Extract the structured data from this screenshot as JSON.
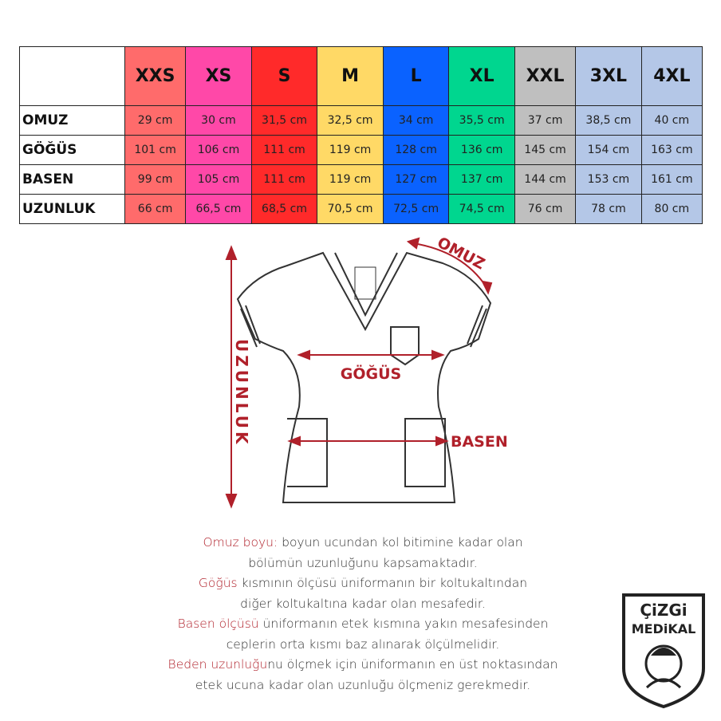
{
  "table": {
    "sizes": [
      "XXS",
      "XS",
      "S",
      "M",
      "L",
      "XL",
      "XXL",
      "3XL",
      "4XL"
    ],
    "size_colors": [
      "#ff6b6b",
      "#ff48a8",
      "#ff2a2a",
      "#ffd966",
      "#0a62ff",
      "#00d68f",
      "#bfbfbf",
      "#b4c7e7",
      "#b4c7e7"
    ],
    "rows": [
      {
        "label": "OMUZ",
        "values": [
          "29 cm",
          "30 cm",
          "31,5 cm",
          "32,5 cm",
          "34 cm",
          "35,5 cm",
          "37 cm",
          "38,5 cm",
          "40 cm"
        ]
      },
      {
        "label": "GÖĞÜS",
        "values": [
          "101 cm",
          "106 cm",
          "111 cm",
          "119 cm",
          "128 cm",
          "136 cm",
          "145 cm",
          "154 cm",
          "163 cm"
        ]
      },
      {
        "label": "BASEN",
        "values": [
          "99 cm",
          "105 cm",
          "111 cm",
          "119 cm",
          "127 cm",
          "137 cm",
          "144 cm",
          "153 cm",
          "161 cm"
        ]
      },
      {
        "label": "UZUNLUK",
        "values": [
          "66 cm",
          "66,5 cm",
          "68,5 cm",
          "70,5 cm",
          "72,5 cm",
          "74,5 cm",
          "76 cm",
          "78 cm",
          "80 cm"
        ]
      }
    ]
  },
  "diagram": {
    "omuz": "OMUZ",
    "gogus": "GÖĞÜS",
    "basen": "BASEN",
    "uzunluk": "UZUNLUK",
    "accent": "#b0202a"
  },
  "description": [
    {
      "highlight": "Omuz boyu:",
      "text": " boyun ucundan kol bitimine kadar olan"
    },
    {
      "highlight": "",
      "text": "bölümün uzunluğunu kapsamaktadır."
    },
    {
      "highlight": "Göğüs",
      "text": " kısmının ölçüsü üniformanın bir koltukaltından"
    },
    {
      "highlight": "",
      "text": "diğer koltukaltına kadar olan mesafedir."
    },
    {
      "highlight": "Basen ölçüsü",
      "text": " üniformanın etek kısmına yakın mesafesinden"
    },
    {
      "highlight": "",
      "text": "ceplerin orta kısmı baz alınarak ölçülmelidir."
    },
    {
      "highlight": "Beden uzunluğu",
      "text": "nu ölçmek için üniformanın en üst noktasından"
    },
    {
      "highlight": "",
      "text": "etek ucuna kadar olan uzunluğu ölçmeniz gerekmedir."
    }
  ],
  "logo": {
    "line1": "ÇiZGi",
    "line2": "MEDiKAL"
  }
}
